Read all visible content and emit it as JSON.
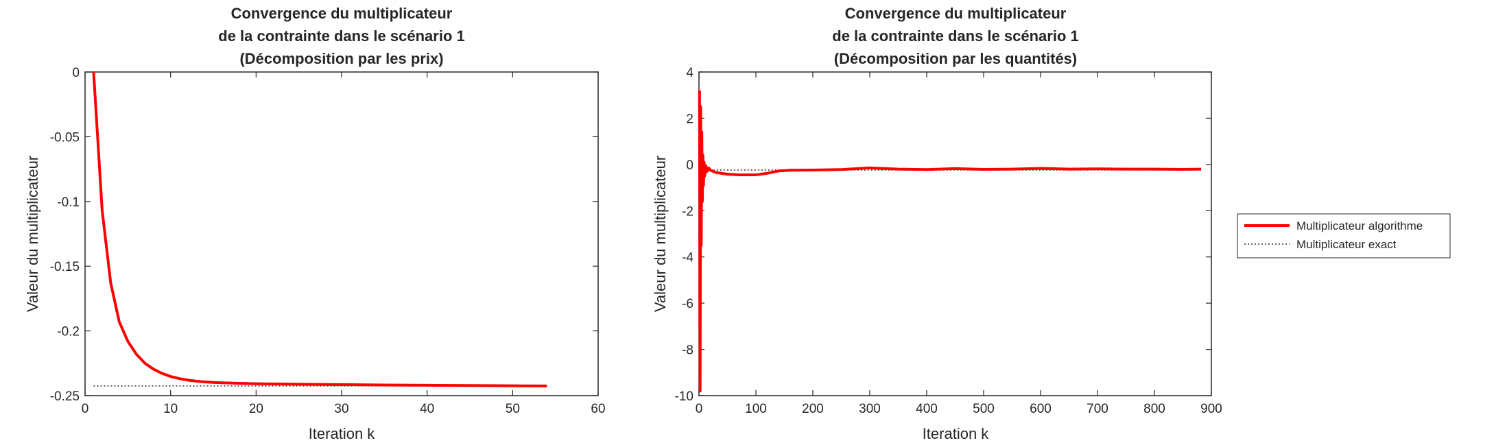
{
  "colors": {
    "algorithm_line": "#ff0000",
    "exact_line": "#262626",
    "axes": "#262626",
    "background": "#ffffff"
  },
  "legend": {
    "placement": "right",
    "entries": [
      "Multiplicateur algorithme",
      "Multiplicateur exact"
    ]
  },
  "chart_data": [
    {
      "type": "line",
      "title": [
        "Convergence du multiplicateur",
        "de la contrainte dans le scénario 1",
        "(Décomposition par les prix)"
      ],
      "xlabel": "Iteration k",
      "ylabel": "Valeur du multiplicateur",
      "xlim": [
        0,
        60
      ],
      "ylim": [
        -0.25,
        0
      ],
      "xticks": [
        0,
        10,
        20,
        30,
        40,
        50,
        60
      ],
      "xtick_labels": [
        "0",
        "10",
        "20",
        "30",
        "40",
        "50",
        "60"
      ],
      "yticks": [
        0,
        -0.05,
        -0.1,
        -0.15,
        -0.2,
        -0.25
      ],
      "ytick_labels": [
        "0",
        "-0.05",
        "-0.1",
        "-0.15",
        "-0.2",
        "-0.25"
      ],
      "grid": false,
      "series": [
        {
          "name": "Multiplicateur algorithme",
          "style": "solid",
          "x": [
            1,
            2,
            3,
            4,
            5,
            6,
            7,
            8,
            9,
            10,
            11,
            12,
            13,
            14,
            15,
            16,
            18,
            20,
            25,
            30,
            35,
            40,
            45,
            50,
            54
          ],
          "y": [
            0,
            -0.107,
            -0.163,
            -0.193,
            -0.208,
            -0.218,
            -0.225,
            -0.2295,
            -0.2328,
            -0.2352,
            -0.2368,
            -0.238,
            -0.2388,
            -0.2394,
            -0.2398,
            -0.2401,
            -0.2405,
            -0.2408,
            -0.2412,
            -0.2415,
            -0.2418,
            -0.242,
            -0.2422,
            -0.2424,
            -0.2425
          ]
        },
        {
          "name": "Multiplicateur exact",
          "style": "dotted",
          "x": [
            1,
            54
          ],
          "y": [
            -0.2425,
            -0.2425
          ]
        }
      ]
    },
    {
      "type": "line",
      "title": [
        "Convergence du multiplicateur",
        "de la contrainte dans le scénario 1",
        "(Décomposition par les quantités)"
      ],
      "xlabel": "Iteration k",
      "ylabel": "Valeur du multiplicateur",
      "xlim": [
        0,
        900
      ],
      "ylim": [
        -10,
        4
      ],
      "xticks": [
        0,
        100,
        200,
        300,
        400,
        500,
        600,
        700,
        800,
        900
      ],
      "xtick_labels": [
        "0",
        "100",
        "200",
        "300",
        "400",
        "500",
        "600",
        "700",
        "800",
        "900"
      ],
      "yticks": [
        4,
        2,
        0,
        -2,
        -4,
        -6,
        -8,
        -10
      ],
      "ytick_labels": [
        "4",
        "2",
        "0",
        "-2",
        "-4",
        "-6",
        "-8",
        "-10"
      ],
      "grid": false,
      "series": [
        {
          "name": "Multiplicateur algorithme",
          "style": "solid",
          "x": [
            1,
            2,
            3,
            4,
            5,
            6,
            7,
            8,
            9,
            10,
            12,
            14,
            17,
            20,
            30,
            50,
            70,
            100,
            120,
            140,
            160,
            200,
            250,
            300,
            350,
            400,
            450,
            500,
            550,
            600,
            650,
            700,
            750,
            800,
            850,
            882
          ],
          "y": [
            3.2,
            -9.8,
            2.5,
            -3.5,
            1.4,
            -1.6,
            0.4,
            -0.9,
            0.1,
            -0.5,
            -0.05,
            -0.3,
            -0.15,
            -0.25,
            -0.35,
            -0.42,
            -0.45,
            -0.45,
            -0.38,
            -0.28,
            -0.25,
            -0.24,
            -0.22,
            -0.15,
            -0.2,
            -0.22,
            -0.18,
            -0.21,
            -0.2,
            -0.17,
            -0.2,
            -0.19,
            -0.2,
            -0.2,
            -0.21,
            -0.2
          ]
        },
        {
          "name": "Multiplicateur exact",
          "style": "dotted",
          "x": [
            1,
            882
          ],
          "y": [
            -0.2425,
            -0.2425
          ]
        }
      ]
    }
  ]
}
